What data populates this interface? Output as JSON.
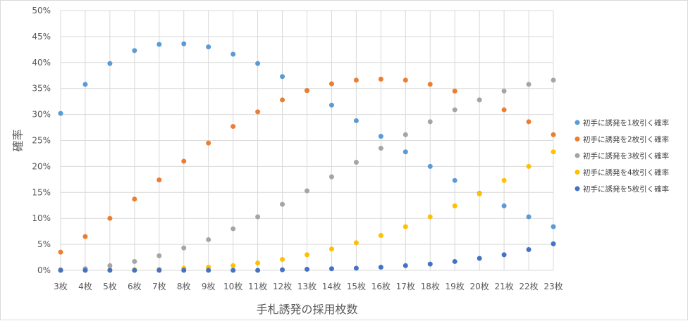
{
  "chart_data": {
    "type": "scatter",
    "title": "",
    "xlabel": "手札誘発の採用枚数",
    "ylabel": "確率",
    "categories": [
      "3枚",
      "4枚",
      "5枚",
      "6枚",
      "7枚",
      "8枚",
      "9枚",
      "10枚",
      "11枚",
      "12枚",
      "13枚",
      "14枚",
      "15枚",
      "16枚",
      "17枚",
      "18枚",
      "19枚",
      "20枚",
      "21枚",
      "22枚",
      "23枚"
    ],
    "y_ticks": [
      "0%",
      "5%",
      "10%",
      "15%",
      "20%",
      "25%",
      "30%",
      "35%",
      "40%",
      "45%",
      "50%"
    ],
    "ylim": [
      0,
      50
    ],
    "grid": true,
    "legend_position": "right",
    "series": [
      {
        "name": "初手に誘発を1枚引く確率",
        "color": "#5B9BD5",
        "values": [
          30.2,
          35.8,
          39.8,
          42.3,
          43.5,
          43.6,
          43.0,
          41.6,
          39.8,
          37.3,
          34.6,
          31.8,
          28.8,
          25.8,
          22.8,
          20.0,
          17.3,
          14.8,
          12.4,
          10.3,
          8.4
        ]
      },
      {
        "name": "初手に誘発を2枚引く確率",
        "color": "#ED7D31",
        "values": [
          3.5,
          6.5,
          10.0,
          13.7,
          17.4,
          21.0,
          24.5,
          27.7,
          30.5,
          32.8,
          34.6,
          35.9,
          36.6,
          36.8,
          36.6,
          35.8,
          34.5,
          32.8,
          30.9,
          28.6,
          26.1
        ]
      },
      {
        "name": "初手に誘発を3枚引く確率",
        "color": "#A5A5A5",
        "values": [
          0.1,
          0.3,
          0.9,
          1.7,
          2.8,
          4.3,
          5.9,
          8.0,
          10.3,
          12.7,
          15.3,
          18.0,
          20.8,
          23.5,
          26.1,
          28.6,
          30.9,
          32.8,
          34.5,
          35.8,
          36.6
        ]
      },
      {
        "name": "初手に誘発を4枚引く確率",
        "color": "#FFC000",
        "values": [
          0,
          0,
          0.1,
          0.1,
          0.2,
          0.4,
          0.6,
          0.9,
          1.4,
          2.1,
          3.0,
          4.1,
          5.3,
          6.7,
          8.4,
          10.3,
          12.4,
          14.7,
          17.3,
          20.0,
          22.8
        ]
      },
      {
        "name": "初手に誘発を5枚引く確率",
        "color": "#4472C4",
        "values": [
          0,
          0,
          0,
          0,
          0,
          0,
          0,
          0,
          0,
          0.1,
          0.2,
          0.3,
          0.4,
          0.6,
          0.9,
          1.2,
          1.7,
          2.3,
          3.0,
          4.0,
          5.1
        ]
      }
    ]
  }
}
